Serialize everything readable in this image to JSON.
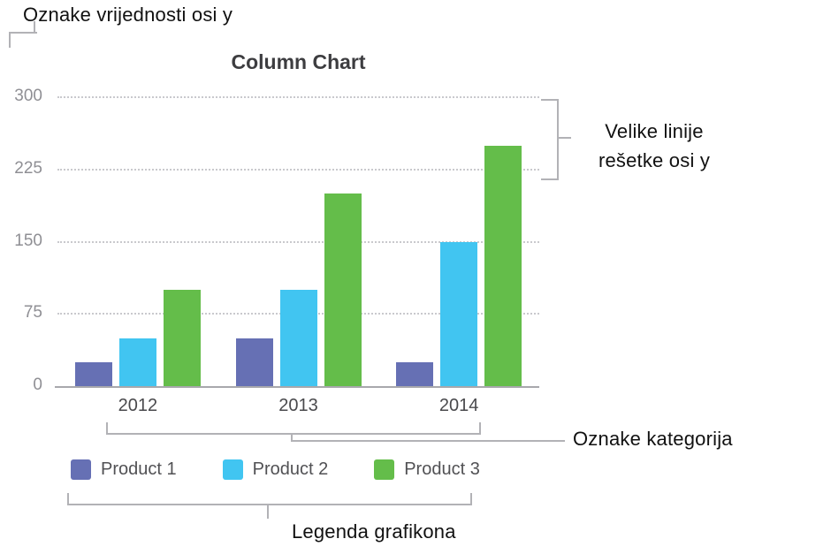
{
  "annotations": {
    "y_value_labels": "Oznake vrijednosti osi y",
    "gridlines": "Velike linije rešetke osi y",
    "category_labels": "Oznake kategorija",
    "legend": "Legenda grafikona"
  },
  "chart_data": {
    "type": "bar",
    "title": "Column Chart",
    "categories": [
      "2012",
      "2013",
      "2014"
    ],
    "series": [
      {
        "name": "Product 1",
        "color": "#6670b4",
        "values": [
          25,
          50,
          25
        ]
      },
      {
        "name": "Product 2",
        "color": "#41c5f1",
        "values": [
          50,
          100,
          150
        ]
      },
      {
        "name": "Product 3",
        "color": "#64bd4a",
        "values": [
          100,
          200,
          250
        ]
      }
    ],
    "yticks": [
      0,
      75,
      150,
      225,
      300
    ],
    "ylim": [
      0,
      300
    ],
    "grid": "horizontal-dotted",
    "legend_position": "bottom"
  },
  "style": {
    "bracket_color": "#b2b2b6"
  }
}
